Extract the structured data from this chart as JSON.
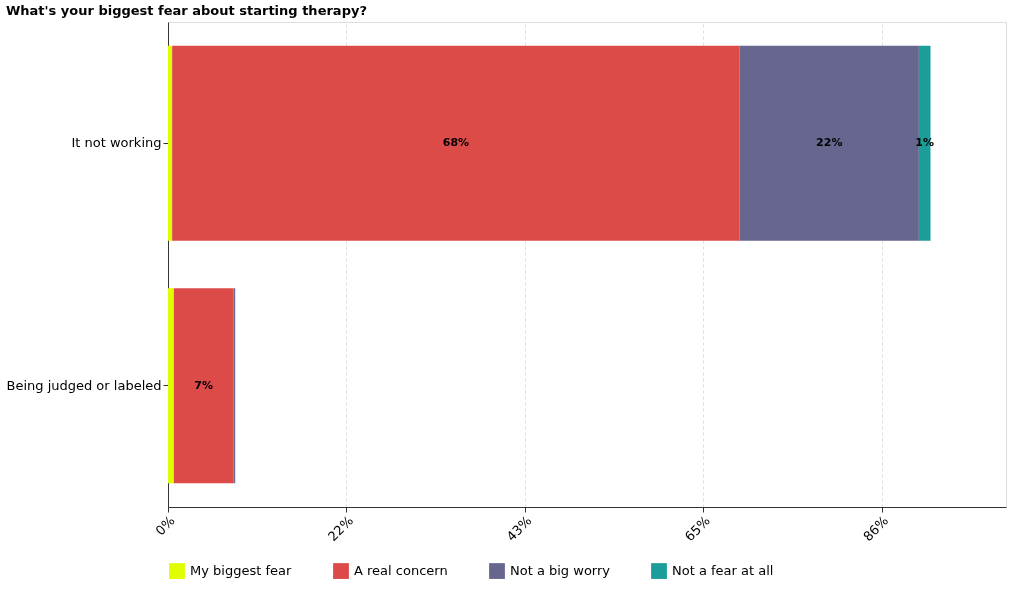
{
  "chart_data": {
    "type": "bar",
    "orientation": "horizontal",
    "stacked": true,
    "title": "What's your biggest fear about starting therapy?",
    "categories": [
      "It not working",
      "Being judged or labeled"
    ],
    "series": [
      {
        "name": "My biggest fear",
        "color": "#dfff00",
        "values": [
          0.5,
          0.7
        ],
        "value_labels": [
          null,
          null
        ]
      },
      {
        "name": "A real concern",
        "color": "#dd4b49",
        "values": [
          68.4,
          7.2
        ],
        "value_labels": [
          "68%",
          "7%"
        ]
      },
      {
        "name": "Not a big worry",
        "color": "#67668f",
        "values": [
          21.6,
          0.2
        ],
        "value_labels": [
          "22%",
          null
        ]
      },
      {
        "name": "Not a fear at all",
        "color": "#1b9e99",
        "values": [
          1.4,
          null
        ],
        "value_labels": [
          "1%",
          null
        ]
      }
    ],
    "xlim": [
      0,
      101
    ],
    "xticks": [
      {
        "value": 0,
        "label": "0%"
      },
      {
        "value": 21.5,
        "label": "22%"
      },
      {
        "value": 43,
        "label": "43%"
      },
      {
        "value": 64.5,
        "label": "65%"
      },
      {
        "value": 86,
        "label": "86%"
      }
    ],
    "grid": "x",
    "legend": "bottom"
  }
}
